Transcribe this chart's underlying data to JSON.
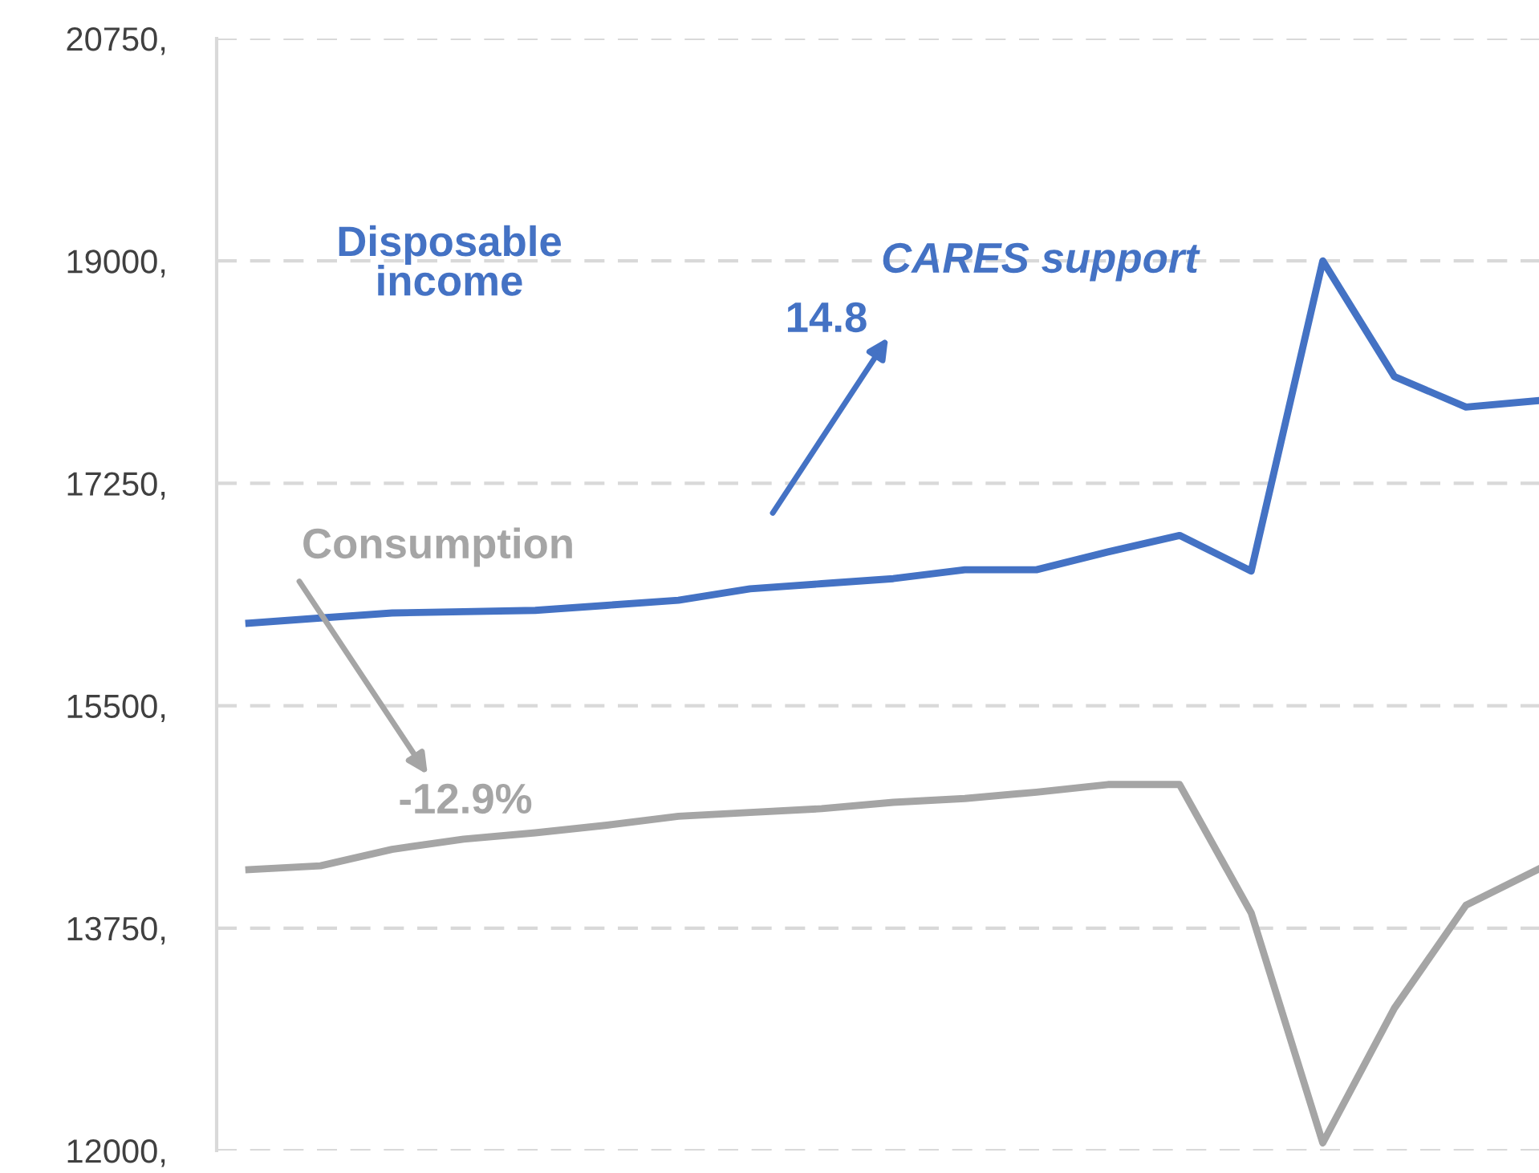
{
  "chart_data": {
    "type": "line",
    "categories": [
      null,
      null,
      null,
      null,
      null,
      null,
      null,
      null,
      null,
      null,
      null,
      null,
      null,
      null,
      null,
      null,
      null,
      null,
      null
    ],
    "series": [
      {
        "color": "#4472c4",
        "values": [
          16150,
          16190,
          16230,
          16240,
          16250,
          16290,
          16330,
          16420,
          16460,
          16500,
          16570,
          16570,
          16710,
          16840,
          16560,
          19000,
          18090,
          17850,
          17900
        ]
      },
      {
        "color": "#a5a5a5",
        "values": [
          14210,
          14240,
          14370,
          14450,
          14500,
          14560,
          14630,
          14660,
          14690,
          14740,
          14770,
          14820,
          14880,
          14880,
          13870,
          12060,
          13120,
          13930,
          14210
        ]
      }
    ],
    "ylim": [
      12000,
      20750
    ],
    "yticks": [
      {
        "value": 12000,
        "label": "12000,"
      },
      {
        "value": 13750,
        "label": "13750,"
      },
      {
        "value": 15500,
        "label": "15500,"
      },
      {
        "value": 17250,
        "label": "17250,"
      },
      {
        "value": 19000,
        "label": "19000,"
      },
      {
        "value": 20750,
        "label": "20750,"
      }
    ],
    "tick_labels": "y",
    "grid": "y",
    "line_style": "solid",
    "marker": "none",
    "legend": false,
    "annotations": [
      "Disposable income",
      "CARES support",
      "14.8",
      "Consumption",
      "-12.9%"
    ]
  }
}
